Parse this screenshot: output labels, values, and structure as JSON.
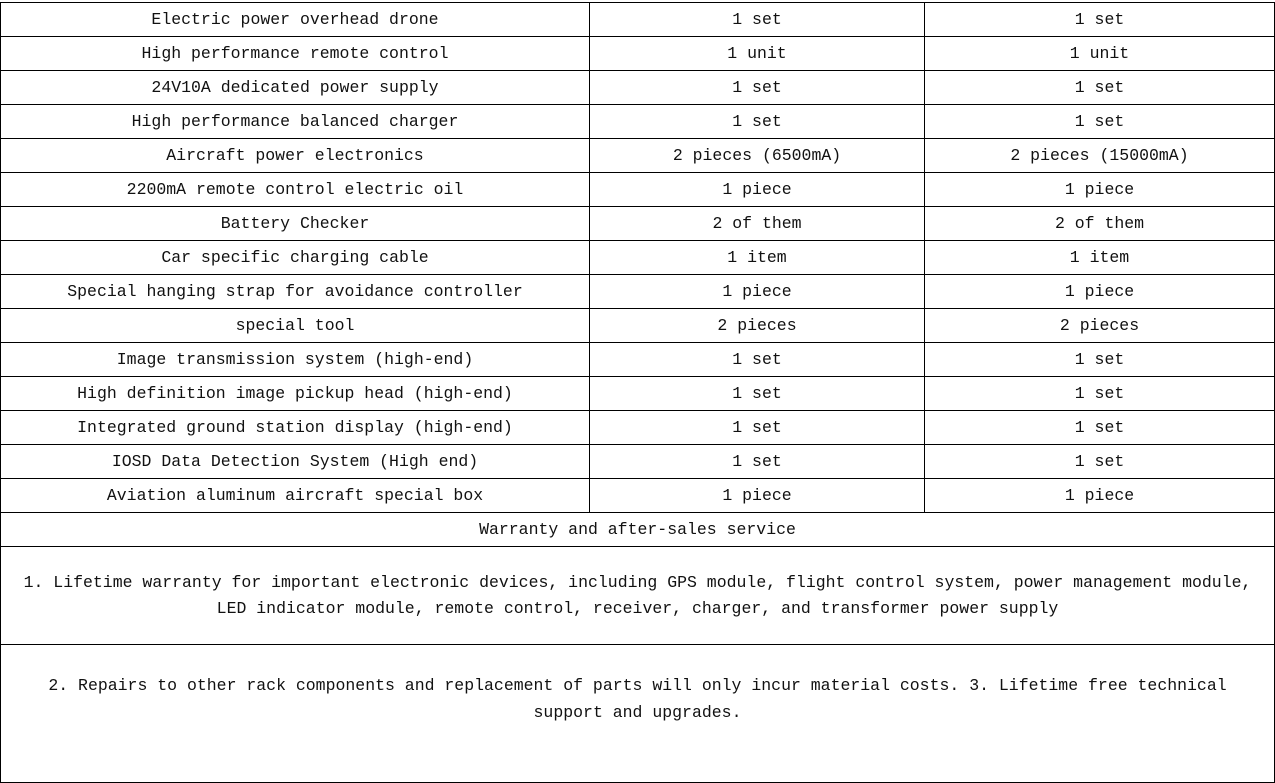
{
  "items": [
    {
      "name": "Electric power overhead drone",
      "qty_a": "1 set",
      "qty_b": "1 set"
    },
    {
      "name": "High performance remote control",
      "qty_a": "1 unit",
      "qty_b": "1 unit"
    },
    {
      "name": "24V10A dedicated power supply",
      "qty_a": "1 set",
      "qty_b": "1 set"
    },
    {
      "name": "High performance balanced charger",
      "qty_a": "1 set",
      "qty_b": "1 set"
    },
    {
      "name": "Aircraft power electronics",
      "qty_a": "2 pieces (6500mA)",
      "qty_b": "2 pieces (15000mA)"
    },
    {
      "name": "2200mA remote control electric oil",
      "qty_a": "1 piece",
      "qty_b": "1 piece"
    },
    {
      "name": "Battery Checker",
      "qty_a": "2 of them",
      "qty_b": "2 of them"
    },
    {
      "name": "Car specific charging cable",
      "qty_a": "1 item",
      "qty_b": "1 item"
    },
    {
      "name": "Special hanging strap for avoidance controller",
      "qty_a": "1 piece",
      "qty_b": "1 piece"
    },
    {
      "name": "special tool",
      "qty_a": "2 pieces",
      "qty_b": "2 pieces"
    },
    {
      "name": "Image transmission system (high-end)",
      "qty_a": "1 set",
      "qty_b": "1 set"
    },
    {
      "name": "High definition image pickup head (high-end)",
      "qty_a": "1 set",
      "qty_b": "1 set"
    },
    {
      "name": "Integrated ground station display (high-end)",
      "qty_a": "1 set",
      "qty_b": "1 set"
    },
    {
      "name": "IOSD Data Detection System (High end)",
      "qty_a": "1 set",
      "qty_b": "1 set"
    },
    {
      "name": "Aviation aluminum aircraft special box",
      "qty_a": "1 piece",
      "qty_b": "1 piece"
    }
  ],
  "warranty": {
    "heading": "Warranty and after-sales service",
    "note1": "1. Lifetime warranty for important electronic devices, including GPS module, flight control system, power management module, LED indicator module, remote control, receiver, charger, and transformer power supply",
    "note2": "2. Repairs to other rack components and replacement of parts will only incur material costs. 3. Lifetime free technical support and upgrades."
  }
}
